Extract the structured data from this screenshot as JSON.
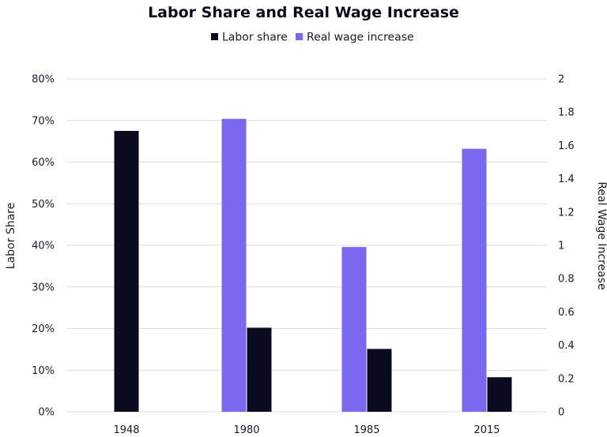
{
  "chart_data": {
    "type": "bar",
    "title": "Labor Share and Real Wage Increase",
    "categories": [
      "1948",
      "1980",
      "1985",
      "2015"
    ],
    "series": [
      {
        "name": "Labor share",
        "axis": "left",
        "values": [
          0.675,
          0.202,
          0.151,
          0.083
        ],
        "color": "#0b0b20"
      },
      {
        "name": "Real wage increase",
        "axis": "right",
        "values": [
          null,
          1.76,
          0.99,
          1.58
        ],
        "color": "#7b68f0"
      }
    ],
    "ylabel": "Labor Share",
    "ylabel_right": "Real Wage Increase",
    "ylim": [
      0,
      0.8
    ],
    "ylim_right": [
      0,
      2
    ],
    "yticks": [
      "0%",
      "10%",
      "20%",
      "30%",
      "40%",
      "50%",
      "60%",
      "70%",
      "80%"
    ],
    "yticks_right": [
      "0",
      "0.2",
      "0.4",
      "0.6",
      "0.8",
      "1",
      "1.2",
      "1.4",
      "1.6",
      "1.8",
      "2"
    ],
    "grid": true,
    "legend_position": "top-center"
  }
}
